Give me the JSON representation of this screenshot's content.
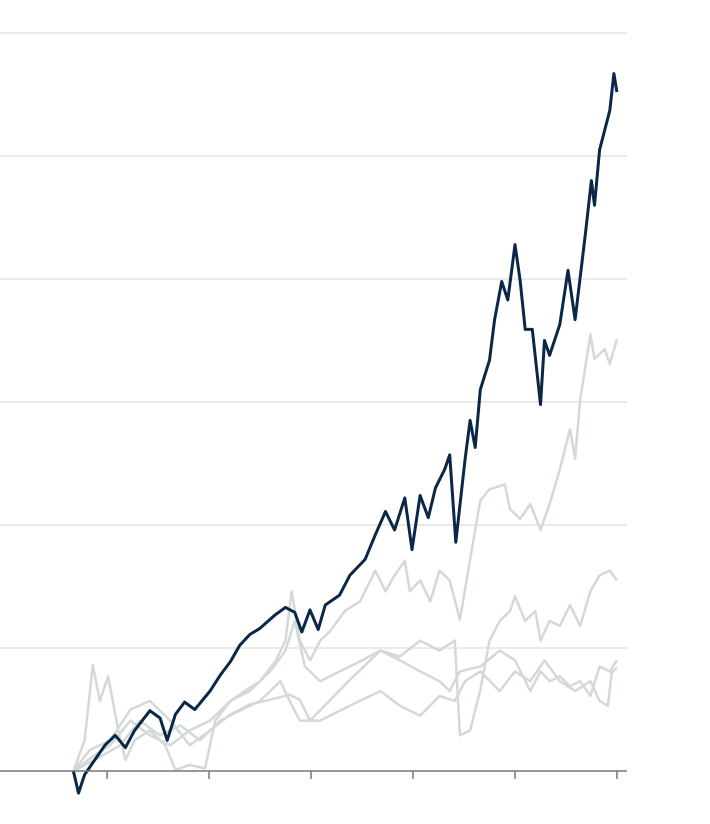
{
  "chart_data": {
    "type": "line",
    "xlim": [
      -0.5,
      60.3
    ],
    "xticks": [
      10,
      20,
      30,
      40,
      50,
      60
    ],
    "ylim": [
      0,
      60
    ],
    "yticks": [
      0,
      10,
      20,
      30,
      40,
      50,
      60
    ],
    "grid": true,
    "series": [
      {
        "color": "#d3d9d6",
        "x": [
          6.7,
          7.8,
          8.6,
          9.3,
          10.1,
          11.1,
          11.8,
          12.7,
          14.2,
          15.7,
          16.7,
          18.1,
          19.6,
          20.6,
          22.1,
          23.5,
          25.0,
          26.5,
          27.5,
          28.1,
          28.9,
          29.9,
          30.9,
          31.9,
          33.3,
          34.8,
          36.3,
          37.3,
          38.2,
          39.2,
          39.7,
          40.7,
          41.7,
          42.6,
          43.6,
          44.6,
          45.6,
          46.6,
          47.5,
          49.0,
          49.5,
          50.5,
          51.5,
          52.5,
          53.4,
          54.4,
          55.4,
          55.9,
          56.4,
          57.4,
          57.8,
          58.8,
          59.3,
          60.0
        ],
        "values": [
          0,
          2.5,
          8.6,
          5.7,
          7.7,
          3.3,
          0.9,
          2.5,
          3.3,
          2.1,
          0.1,
          0.5,
          0.2,
          4.1,
          5.7,
          6.5,
          7.3,
          8.9,
          10.6,
          14.6,
          10.6,
          9.0,
          10.6,
          11.4,
          13.0,
          13.8,
          16.3,
          14.6,
          15.9,
          17.1,
          14.6,
          15.5,
          13.8,
          16.3,
          15.5,
          12.3,
          17.2,
          22.0,
          22.9,
          23.3,
          21.3,
          20.5,
          21.7,
          19.6,
          21.7,
          24.5,
          27.8,
          25.4,
          30.2,
          35.5,
          33.5,
          34.3,
          33.1,
          35.1
        ]
      },
      {
        "color": "#d3d9d6",
        "x": [
          6.7,
          8.8,
          10.3,
          12.3,
          14.2,
          16.2,
          18.1,
          20.1,
          22.1,
          24.0,
          26.0,
          27.5,
          28.4,
          29.4,
          30.9,
          32.8,
          34.8,
          36.8,
          38.7,
          40.7,
          42.6,
          44.1,
          44.6,
          45.6,
          46.6,
          47.5,
          48.5,
          49.5,
          50.0,
          51.0,
          52.0,
          52.5,
          53.4,
          54.4,
          55.4,
          56.4,
          57.4,
          58.3,
          59.3,
          60.0
        ],
        "values": [
          0,
          1.3,
          2.1,
          4.1,
          2.9,
          2.1,
          3.3,
          4.1,
          5.7,
          6.5,
          8.1,
          9.8,
          12.2,
          8.5,
          7.3,
          8.1,
          8.9,
          9.8,
          9.3,
          10.6,
          9.8,
          10.6,
          2.9,
          3.3,
          6.6,
          10.6,
          12.2,
          13.0,
          14.2,
          12.2,
          13.0,
          10.6,
          12.2,
          11.8,
          13.5,
          11.8,
          14.6,
          15.9,
          16.3,
          15.5
        ]
      },
      {
        "color": "#d3d9d6",
        "x": [
          6.7,
          8.3,
          10.3,
          12.3,
          14.2,
          16.2,
          18.1,
          20.1,
          22.1,
          24.0,
          26.0,
          27.9,
          28.9,
          29.9,
          31.9,
          33.8,
          35.8,
          36.8,
          38.7,
          40.7,
          42.6,
          43.6,
          44.6,
          46.6,
          48.5,
          50.0,
          51.5,
          52.5,
          53.4,
          54.4,
          55.4,
          56.4,
          57.4,
          58.3,
          59.3,
          60.0
        ],
        "values": [
          0,
          1.7,
          2.5,
          5.0,
          5.7,
          4.1,
          2.1,
          3.3,
          4.6,
          5.4,
          5.8,
          6.2,
          5.8,
          4.1,
          5.8,
          7.4,
          9.0,
          9.8,
          9.0,
          8.1,
          7.3,
          6.5,
          8.1,
          8.5,
          9.8,
          9.0,
          6.5,
          8.1,
          7.3,
          7.7,
          6.9,
          7.3,
          6.1,
          8.5,
          8.1,
          9.0
        ]
      },
      {
        "color": "#d3d9d6",
        "x": [
          6.7,
          8.8,
          11.3,
          13.2,
          15.2,
          17.2,
          19.1,
          21.1,
          23.0,
          25.0,
          27.0,
          27.9,
          28.9,
          30.9,
          32.8,
          34.8,
          36.8,
          38.7,
          40.7,
          42.6,
          44.1,
          45.1,
          46.6,
          48.5,
          50.0,
          51.5,
          52.9,
          54.4,
          55.9,
          57.4,
          58.3,
          59.1,
          59.5,
          60.0
        ],
        "values": [
          0,
          0.9,
          2.1,
          4.1,
          2.9,
          3.7,
          2.5,
          4.1,
          4.9,
          5.7,
          7.3,
          5.7,
          4.1,
          4.1,
          4.9,
          5.7,
          6.5,
          5.3,
          4.5,
          6.1,
          5.7,
          7.3,
          8.1,
          6.5,
          8.1,
          7.3,
          9.0,
          7.3,
          6.5,
          7.3,
          5.7,
          5.3,
          8.0,
          8.4
        ]
      },
      {
        "color": "#0b2748",
        "x": [
          6.7,
          7.2,
          7.8,
          8.8,
          9.8,
          10.8,
          11.8,
          12.7,
          14.2,
          15.2,
          15.9,
          16.7,
          17.6,
          18.6,
          20.1,
          21.1,
          22.1,
          23.0,
          24.0,
          25.0,
          26.5,
          27.5,
          28.4,
          29.1,
          29.9,
          30.7,
          31.4,
          32.8,
          33.8,
          35.3,
          36.3,
          37.3,
          38.2,
          39.2,
          39.9,
          40.7,
          41.5,
          42.2,
          43.1,
          43.6,
          44.2,
          45.1,
          45.6,
          46.1,
          46.6,
          47.5,
          48.0,
          48.7,
          49.3,
          50.0,
          50.5,
          51.0,
          51.7,
          52.5,
          52.9,
          53.4,
          54.4,
          55.2,
          55.9,
          56.9,
          57.5,
          57.8,
          58.3,
          59.3,
          59.7,
          60.0
        ],
        "values": [
          0,
          -1.8,
          -0.3,
          0.9,
          2.1,
          2.9,
          1.9,
          3.3,
          4.9,
          4.3,
          2.5,
          4.6,
          5.6,
          5.0,
          6.5,
          7.8,
          8.9,
          10.2,
          11.1,
          11.6,
          12.7,
          13.3,
          12.9,
          11.3,
          13.1,
          11.5,
          13.5,
          14.3,
          15.9,
          17.2,
          19.2,
          21.1,
          19.6,
          22.2,
          18.0,
          22.4,
          20.6,
          23.0,
          24.5,
          25.7,
          18.6,
          25.3,
          28.5,
          26.3,
          31.0,
          33.4,
          36.7,
          39.8,
          38.3,
          42.8,
          39.9,
          35.9,
          35.9,
          29.8,
          35.0,
          33.8,
          36.3,
          40.7,
          36.7,
          43.6,
          48.0,
          46.0,
          50.5,
          53.7,
          56.7,
          55.2
        ]
      }
    ]
  }
}
